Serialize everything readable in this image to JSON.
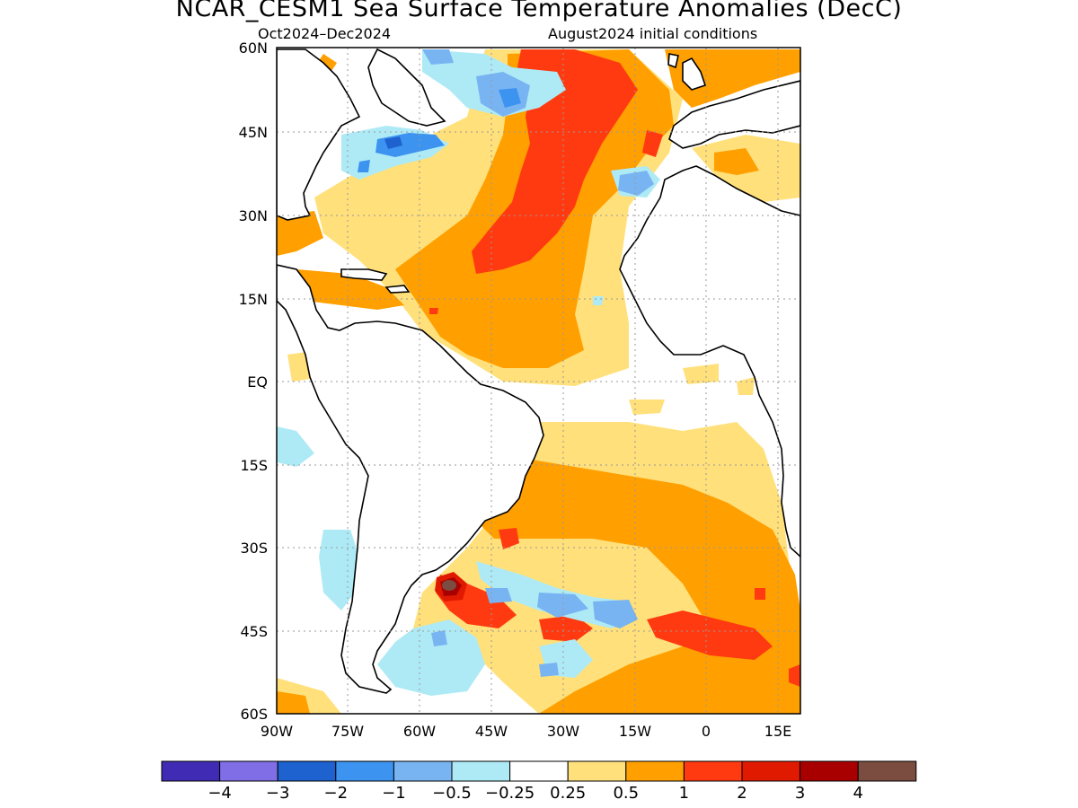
{
  "title": "NCAR_CESM1 Sea Surface Temperature Anomalies (DecC)",
  "subtitle_left": "Oct2024–Dec2024",
  "subtitle_right": "August2024 initial conditions",
  "map": {
    "lon_range": [
      -90,
      20
    ],
    "lat_range": [
      -60,
      60
    ],
    "y_ticks": [
      "60N",
      "45N",
      "30N",
      "15N",
      "EQ",
      "15S",
      "30S",
      "45S",
      "60S"
    ],
    "x_ticks": [
      "90W",
      "75W",
      "60W",
      "45W",
      "30W",
      "15W",
      "0",
      "15E"
    ],
    "grid": "dotted"
  },
  "colorbar": {
    "colors": [
      "#3f2bb4",
      "#7f6ee6",
      "#1d62cf",
      "#3c93f0",
      "#79b4f2",
      "#aeeaf6",
      "#ffffff",
      "#ffe07a",
      "#ff9f00",
      "#ff3a10",
      "#e01a00",
      "#a80000",
      "#7a4d40"
    ],
    "labels": [
      "−4",
      "−3",
      "−2",
      "−1",
      "−0.5",
      "−0.25",
      "0.25",
      "0.5",
      "1",
      "2",
      "3",
      "4"
    ]
  }
}
